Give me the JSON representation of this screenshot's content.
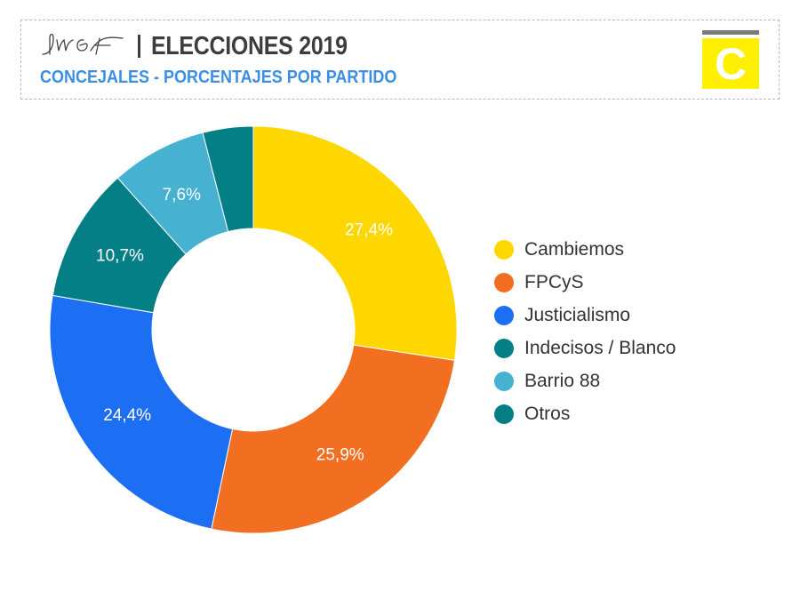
{
  "header": {
    "title": "ELECCIONES 2019",
    "subtitle": "CONCEJALES - PORCENTAJES POR PARTIDO",
    "signature": "JMGF",
    "logo_letter": "C",
    "logo_color": "#ffef00",
    "title_color": "#3d3d3d",
    "subtitle_color": "#3b8ee3"
  },
  "chart_data": {
    "type": "pie",
    "style": "donut",
    "start": "top, clockwise",
    "categories": [
      "Cambiemos",
      "FPCyS",
      "Justicialismo",
      "Indecisos / Blanco",
      "Barrio 88",
      "Otros"
    ],
    "values": [
      27.4,
      25.9,
      24.4,
      10.7,
      7.6,
      4.0
    ],
    "labels": [
      "27,4%",
      "25,9%",
      "24,4%",
      "10,7%",
      "7,6%",
      ""
    ],
    "colors": [
      "#ffd700",
      "#f26f21",
      "#1c6ff2",
      "#057f86",
      "#46b1d1",
      "#057f86"
    ],
    "legend_position": "right"
  }
}
